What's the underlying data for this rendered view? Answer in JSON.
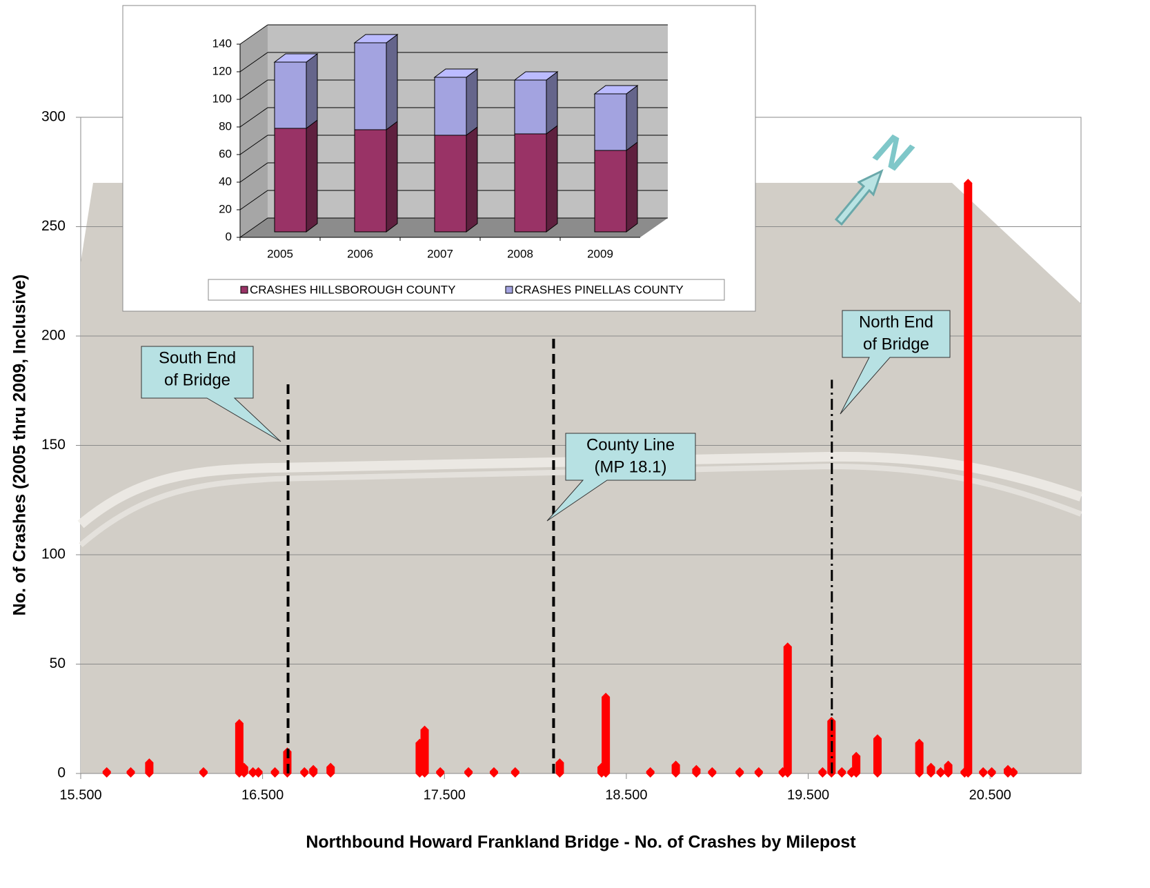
{
  "chart_data": [
    {
      "type": "scatter",
      "x_label": "Northbound Howard Frankland Bridge  -  No. of Crashes by Milepost",
      "y_label": "No. of Crashes (2005 thru 2009, Inclusive)",
      "xlim": [
        15.5,
        21.0
      ],
      "ylim": [
        0,
        300
      ],
      "xticks": [
        {
          "value": 15.5,
          "label": "15.500"
        },
        {
          "value": 16.5,
          "label": "16.500"
        },
        {
          "value": 17.5,
          "label": "17.500"
        },
        {
          "value": 18.5,
          "label": "18.500"
        },
        {
          "value": 19.5,
          "label": "19.500"
        },
        {
          "value": 20.5,
          "label": "20.500"
        }
      ],
      "yticks": [
        0,
        50,
        100,
        150,
        200,
        250,
        300
      ],
      "grid": true,
      "color": "#ff0000",
      "x": [
        15.643,
        15.775,
        15.877,
        16.175,
        16.372,
        16.398,
        16.447,
        16.477,
        16.568,
        16.636,
        16.73,
        16.779,
        16.874,
        17.364,
        17.391,
        17.477,
        17.632,
        17.772,
        17.889,
        18.134,
        18.364,
        18.387,
        18.632,
        18.772,
        18.885,
        18.972,
        19.123,
        19.228,
        19.36,
        19.387,
        19.579,
        19.628,
        19.685,
        19.738,
        19.764,
        19.881,
        20.111,
        20.175,
        20.228,
        20.27,
        20.36,
        20.379,
        20.462,
        20.509,
        20.598,
        20.628
      ],
      "values": [
        1,
        1,
        5,
        1,
        23,
        3,
        1,
        1,
        1,
        10,
        1,
        2,
        3,
        14,
        20,
        1,
        1,
        1,
        1,
        5,
        3,
        35,
        1,
        4,
        2,
        1,
        1,
        1,
        1,
        58,
        1,
        24,
        1,
        1,
        8,
        16,
        14,
        3,
        1,
        4,
        1,
        270,
        1,
        1,
        2,
        1
      ],
      "annotations": [
        {
          "x": 16.64,
          "y": 180,
          "line_style": "dashed",
          "text": [
            "South End",
            "of Bridge"
          ]
        },
        {
          "x": 18.1,
          "y": 200,
          "line_style": "dashed",
          "text": [
            "County Line",
            "(MP 18.1)"
          ]
        },
        {
          "x": 19.63,
          "y": 180,
          "line_style": "dash-dot",
          "text": [
            "North End",
            "of Bridge"
          ]
        }
      ],
      "north_label": "N"
    },
    {
      "type": "stacked_bar_3d",
      "categories": [
        "2005",
        "2006",
        "2007",
        "2008",
        "2009"
      ],
      "series": [
        {
          "name": "CRASHES HILLSBOROUGH COUNTY",
          "color": "#993366",
          "values": [
            75,
            74,
            70,
            71,
            59
          ]
        },
        {
          "name": "CRASHES PINELLAS COUNTY",
          "color": "#a3a3e0",
          "values": [
            48,
            63,
            42,
            39,
            41
          ]
        }
      ],
      "ylim": [
        0,
        140
      ],
      "yticks": [
        0,
        20,
        40,
        60,
        80,
        100,
        120,
        140
      ],
      "grid": true,
      "legend": "bottom"
    }
  ]
}
